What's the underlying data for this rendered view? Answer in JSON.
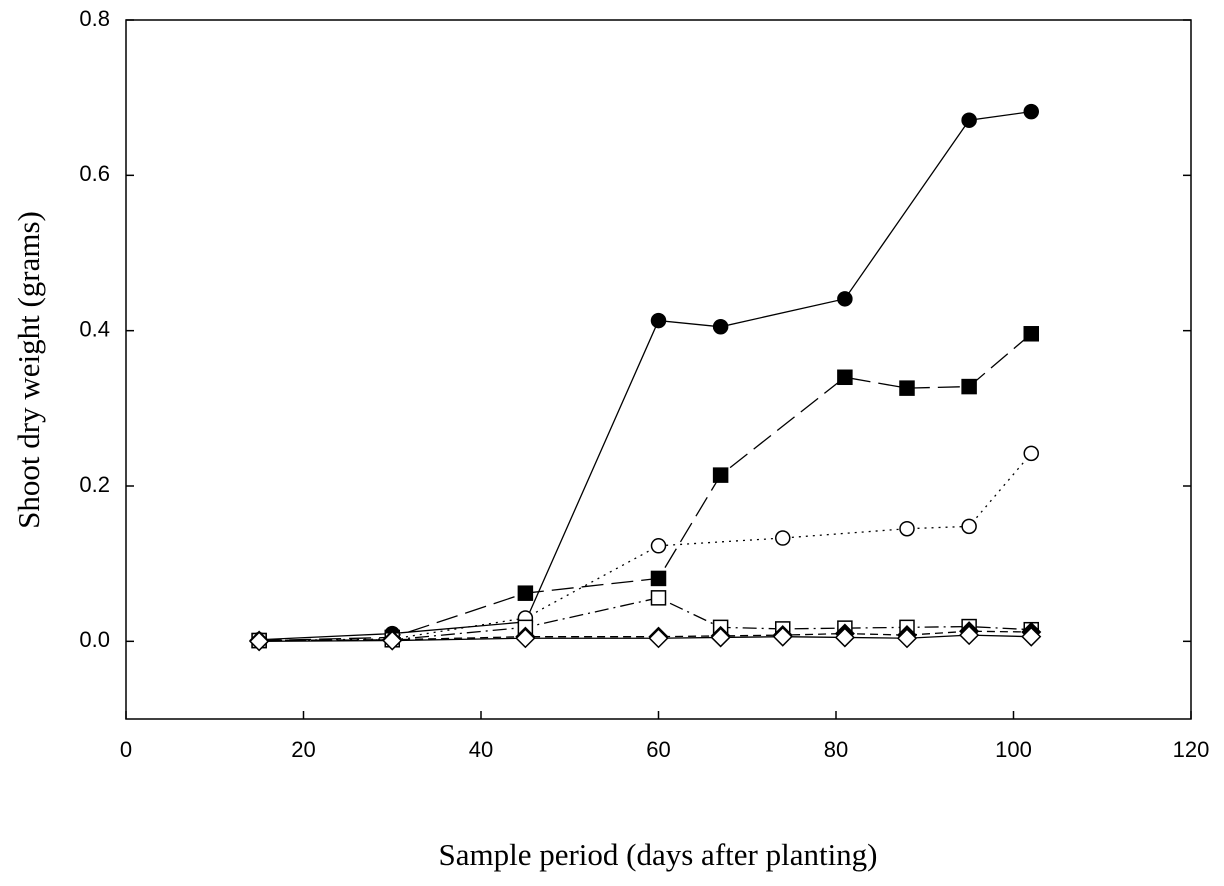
{
  "chart_data": {
    "type": "line",
    "x_label": "Sample period (days after planting)",
    "y_label": "Shoot dry weight (grams)",
    "xlim": [
      0,
      120
    ],
    "xticks": [
      0,
      20,
      40,
      60,
      80,
      100,
      120
    ],
    "ylim": [
      -0.1,
      0.8
    ],
    "yticks": [
      {
        "value": 0,
        "label": "0.0"
      },
      0.2,
      0.4,
      0.6,
      0.8
    ],
    "series": [
      {
        "color": "#000000",
        "marker": "circle",
        "filled": true,
        "dash": "solid",
        "x": [
          15,
          30,
          45,
          60,
          67,
          81,
          95,
          102
        ],
        "values": [
          0.002,
          0.01,
          0.025,
          0.413,
          0.405,
          0.441,
          0.671,
          0.682
        ]
      },
      {
        "color": "#000000",
        "marker": "square",
        "filled": true,
        "dash": "longdash",
        "x": [
          15,
          30,
          45,
          60,
          67,
          81,
          88,
          95,
          102
        ],
        "values": [
          0.001,
          0.005,
          0.062,
          0.081,
          0.214,
          0.34,
          0.326,
          0.328,
          0.396
        ]
      },
      {
        "color": "#000000",
        "marker": "circle",
        "filled": false,
        "dash": "dot",
        "x": [
          15,
          30,
          45,
          60,
          74,
          88,
          95,
          102
        ],
        "values": [
          0.001,
          0.003,
          0.03,
          0.123,
          0.133,
          0.145,
          0.148,
          0.242
        ]
      },
      {
        "color": "#000000",
        "marker": "square",
        "filled": false,
        "dash": "dashdot",
        "x": [
          15,
          30,
          45,
          60,
          67,
          74,
          81,
          88,
          95,
          102
        ],
        "values": [
          0.001,
          0.002,
          0.018,
          0.056,
          0.018,
          0.016,
          0.017,
          0.018,
          0.019,
          0.015
        ]
      },
      {
        "color": "#000000",
        "marker": "diamond",
        "filled": true,
        "dash": "dash",
        "x": [
          15,
          30,
          45,
          60,
          67,
          74,
          81,
          88,
          95,
          102
        ],
        "values": [
          0.001,
          0.002,
          0.006,
          0.006,
          0.007,
          0.008,
          0.01,
          0.008,
          0.013,
          0.012
        ]
      },
      {
        "color": "#000000",
        "marker": "diamond",
        "filled": false,
        "dash": "solid",
        "x": [
          15,
          30,
          45,
          60,
          67,
          74,
          81,
          88,
          95,
          102
        ],
        "values": [
          0.0,
          0.001,
          0.004,
          0.004,
          0.005,
          0.006,
          0.005,
          0.004,
          0.008,
          0.006
        ]
      }
    ]
  }
}
